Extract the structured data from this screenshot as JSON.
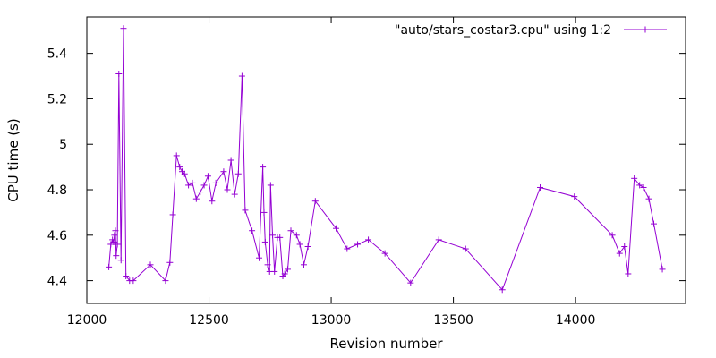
{
  "chart_data": {
    "type": "line",
    "title": "",
    "xlabel": "Revision number",
    "ylabel": "CPU time (s)",
    "xlim": [
      12000,
      14450
    ],
    "ylim": [
      4.3,
      5.56
    ],
    "xticks": [
      12000,
      12500,
      13000,
      13500,
      14000
    ],
    "yticks": [
      4.4,
      4.6,
      4.8,
      5.0,
      5.2,
      5.4
    ],
    "ytick_labels": [
      "4.4",
      "4.6",
      "4.8",
      "5",
      "5.2",
      "5.4"
    ],
    "legend_position": "top-right",
    "grid": false,
    "series": [
      {
        "name": "\"auto/stars_costar3.cpu\" using 1:2",
        "color": "#9400d3",
        "marker": "plus",
        "x": [
          12090,
          12098,
          12105,
          12110,
          12113,
          12117,
          12120,
          12125,
          12131,
          12140,
          12150,
          12160,
          12175,
          12190,
          12260,
          12322,
          12340,
          12352,
          12367,
          12380,
          12390,
          12400,
          12416,
          12432,
          12448,
          12464,
          12480,
          12496,
          12512,
          12528,
          12560,
          12575,
          12590,
          12605,
          12620,
          12635,
          12648,
          12676,
          12705,
          12720,
          12725,
          12730,
          12740,
          12748,
          12752,
          12760,
          12768,
          12780,
          12790,
          12802,
          12810,
          12822,
          12835,
          12858,
          12872,
          12888,
          12905,
          12935,
          13020,
          13065,
          13108,
          13152,
          13220,
          13325,
          13440,
          13550,
          13700,
          13855,
          13995,
          14150,
          14180,
          14200,
          14215,
          14240,
          14262,
          14278,
          14300,
          14320,
          14355
        ],
        "y": [
          4.46,
          4.56,
          4.58,
          4.57,
          4.6,
          4.62,
          4.51,
          4.56,
          5.31,
          4.49,
          5.51,
          4.42,
          4.4,
          4.4,
          4.47,
          4.4,
          4.48,
          4.69,
          4.95,
          4.9,
          4.88,
          4.87,
          4.82,
          4.83,
          4.76,
          4.79,
          4.82,
          4.86,
          4.75,
          4.83,
          4.88,
          4.8,
          4.93,
          4.78,
          4.87,
          5.3,
          4.71,
          4.62,
          4.5,
          4.9,
          4.7,
          4.57,
          4.47,
          4.44,
          4.82,
          4.6,
          4.44,
          4.59,
          4.59,
          4.42,
          4.43,
          4.45,
          4.62,
          4.6,
          4.56,
          4.47,
          4.55,
          4.75,
          4.63,
          4.54,
          4.56,
          4.58,
          4.52,
          4.39,
          4.58,
          4.54,
          4.36,
          4.81,
          4.77,
          4.6,
          4.52,
          4.55,
          4.43,
          4.85,
          4.82,
          4.81,
          4.76,
          4.65,
          4.45
        ]
      }
    ]
  }
}
